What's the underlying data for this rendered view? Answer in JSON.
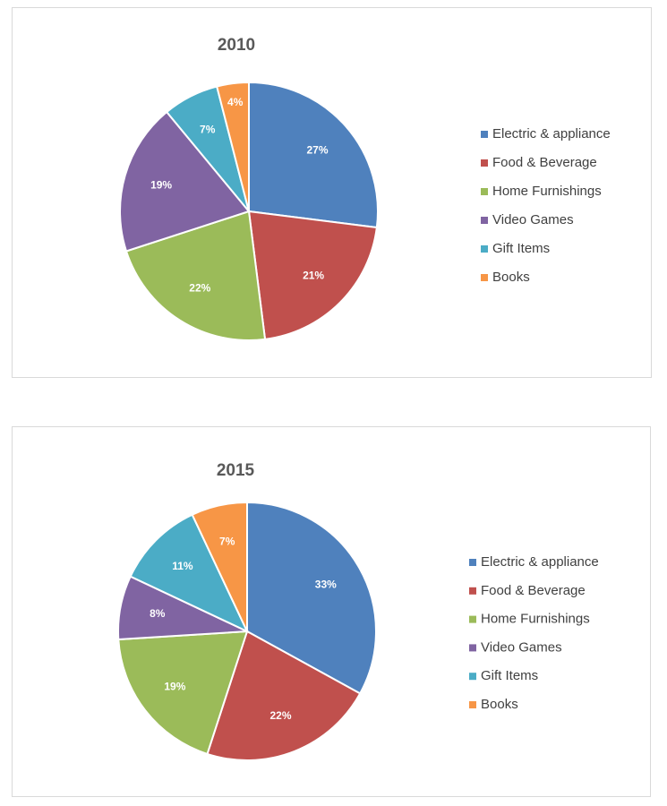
{
  "chart_data": [
    {
      "type": "pie",
      "title": "2010",
      "categories": [
        "Electric & appliance",
        "Food & Beverage",
        "Home Furnishings",
        "Video Games",
        "Gift Items",
        "Books"
      ],
      "values": [
        27,
        21,
        22,
        19,
        7,
        4
      ],
      "labels": [
        "27%",
        "21%",
        "22%",
        "19%",
        "7%",
        "4%"
      ],
      "colors": [
        "#4f81bd",
        "#c0504d",
        "#9bbb59",
        "#8064a2",
        "#4bacc6",
        "#f79646"
      ],
      "legend_position": "right"
    },
    {
      "type": "pie",
      "title": "2015",
      "categories": [
        "Electric & appliance",
        "Food & Beverage",
        "Home Furnishings",
        "Video Games",
        "Gift Items",
        "Books"
      ],
      "values": [
        33,
        22,
        19,
        8,
        11,
        7
      ],
      "labels": [
        "33%",
        "22%",
        "19%",
        "8%",
        "11%",
        "7%"
      ],
      "colors": [
        "#4f81bd",
        "#c0504d",
        "#9bbb59",
        "#8064a2",
        "#4bacc6",
        "#f79646"
      ],
      "legend_position": "right"
    }
  ]
}
